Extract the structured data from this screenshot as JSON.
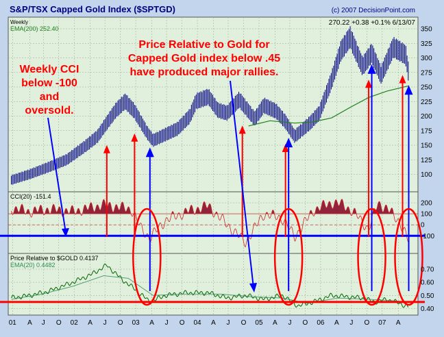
{
  "header": {
    "title": "S&P/TSX Capped Gold Index ($SPTGD)",
    "copyright": "(c) 2007 DecisionPoint.com",
    "period": "Weekly",
    "ema_label": "EMA(200) 252.40",
    "last_quote": "270.22  +0.38  +0.1%  6/13/07"
  },
  "annotations": {
    "cci_note": [
      "Weekly CCI",
      "below -100",
      "and",
      "oversold."
    ],
    "ratio_note": [
      "Price Relative to Gold for",
      "Capped Gold index below .45",
      "have produced major rallies."
    ]
  },
  "panels": {
    "cci_label": "CCI(20) -151.4",
    "ratio_label": "Price Relative to $GOLD  0.4137",
    "ratio_ema_label": "EMA(20) 0.4482"
  },
  "colors": {
    "background": "#e0f0dc",
    "frame_bg": "#c2d5ec",
    "price_bars": "#000080",
    "ema_line": "#208020",
    "cci_fill": "#800020",
    "cci_line": "#cc2222",
    "ratio_line": "#006400",
    "ratio_ema": "#2e8b57",
    "red_marker": "#ff0000",
    "blue_marker": "#0000ff",
    "annotation_red": "#ff0000",
    "title_blue": "#000080"
  },
  "chart_data": [
    {
      "type": "line",
      "name": "price",
      "ylim": [
        70,
        370
      ],
      "yticks": [
        100,
        125,
        150,
        175,
        200,
        225,
        250,
        275,
        300,
        325,
        350
      ],
      "x": [
        2001.0,
        2001.3,
        2001.6,
        2001.9,
        2002.2,
        2002.4,
        2002.55,
        2002.7,
        2002.85,
        2003.0,
        2003.2,
        2003.3,
        2003.5,
        2003.7,
        2003.9,
        2004.0,
        2004.2,
        2004.35,
        2004.5,
        2004.7,
        2004.95,
        2005.1,
        2005.3,
        2005.45,
        2005.6,
        2005.85,
        2006.0,
        2006.2,
        2006.35,
        2006.5,
        2006.7,
        2006.85,
        2007.0,
        2007.2,
        2007.4,
        2007.45
      ],
      "values": [
        90,
        100,
        112,
        125,
        148,
        165,
        188,
        210,
        225,
        208,
        172,
        158,
        168,
        178,
        200,
        225,
        233,
        210,
        205,
        228,
        195,
        218,
        208,
        190,
        165,
        188,
        205,
        262,
        312,
        335,
        285,
        308,
        270,
        318,
        305,
        272
      ],
      "ema200": {
        "x": [
          2004.85,
          2005.2,
          2005.6,
          2005.9,
          2006.2,
          2006.5,
          2006.8,
          2007.1,
          2007.45
        ],
        "values": [
          183,
          192,
          188,
          190,
          197,
          215,
          232,
          243,
          252
        ]
      }
    },
    {
      "type": "area",
      "name": "CCI(20)",
      "ylim": [
        -260,
        300
      ],
      "yticks": [
        200,
        100,
        0,
        -100
      ],
      "x": [
        2001.0,
        2001.3,
        2001.6,
        2002.0,
        2002.5,
        2002.95,
        2003.1,
        2003.25,
        2003.5,
        2003.85,
        2004.2,
        2004.45,
        2004.8,
        2005.1,
        2005.4,
        2005.6,
        2005.9,
        2006.2,
        2006.4,
        2006.6,
        2006.8,
        2006.95,
        2007.15,
        2007.3,
        2007.45
      ],
      "values": [
        150,
        120,
        140,
        120,
        180,
        140,
        -30,
        -120,
        40,
        120,
        170,
        30,
        -160,
        100,
        60,
        -110,
        130,
        200,
        180,
        90,
        -40,
        200,
        120,
        30,
        -151
      ],
      "overbought": 100,
      "oversold": -100
    },
    {
      "type": "line",
      "name": "Price Relative to $GOLD",
      "ylim": [
        0.35,
        0.82
      ],
      "yticks": [
        0.7,
        0.6,
        0.5,
        0.4
      ],
      "threshold": 0.45,
      "x": [
        2001.0,
        2001.3,
        2001.6,
        2002.0,
        2002.3,
        2002.55,
        2002.8,
        2003.0,
        2003.25,
        2003.5,
        2003.85,
        2004.2,
        2004.5,
        2004.8,
        2005.1,
        2005.4,
        2005.65,
        2005.9,
        2006.2,
        2006.45,
        2006.7,
        2006.9,
        2007.1,
        2007.3,
        2007.45
      ],
      "values": [
        0.48,
        0.5,
        0.53,
        0.6,
        0.66,
        0.73,
        0.62,
        0.55,
        0.45,
        0.5,
        0.52,
        0.52,
        0.48,
        0.5,
        0.47,
        0.5,
        0.42,
        0.45,
        0.5,
        0.49,
        0.48,
        0.45,
        0.47,
        0.44,
        0.41
      ],
      "ema20": {
        "x": [
          2001.0,
          2001.5,
          2002.0,
          2002.5,
          2002.9,
          2003.3,
          2003.8,
          2004.4,
          2004.9,
          2005.4,
          2005.8,
          2006.3,
          2006.8,
          2007.2,
          2007.45
        ],
        "values": [
          0.47,
          0.51,
          0.57,
          0.65,
          0.63,
          0.5,
          0.51,
          0.51,
          0.49,
          0.48,
          0.44,
          0.48,
          0.47,
          0.46,
          0.448
        ]
      }
    }
  ],
  "x_axis": {
    "ticks": [
      {
        "label": "01",
        "x": 2001.02
      },
      {
        "label": "A",
        "x": 2001.3
      },
      {
        "label": "J",
        "x": 2001.52
      },
      {
        "label": "O",
        "x": 2001.77
      },
      {
        "label": "02",
        "x": 2002.02
      },
      {
        "label": "A",
        "x": 2002.28
      },
      {
        "label": "J",
        "x": 2002.52
      },
      {
        "label": "O",
        "x": 2002.77
      },
      {
        "label": "03",
        "x": 2003.02
      },
      {
        "label": "A",
        "x": 2003.28
      },
      {
        "label": "J",
        "x": 2003.52
      },
      {
        "label": "O",
        "x": 2003.77
      },
      {
        "label": "04",
        "x": 2004.02
      },
      {
        "label": "A",
        "x": 2004.28
      },
      {
        "label": "J",
        "x": 2004.52
      },
      {
        "label": "O",
        "x": 2004.77
      },
      {
        "label": "05",
        "x": 2005.02
      },
      {
        "label": "A",
        "x": 2005.28
      },
      {
        "label": "J",
        "x": 2005.52
      },
      {
        "label": "O",
        "x": 2005.77
      },
      {
        "label": "06",
        "x": 2006.02
      },
      {
        "label": "A",
        "x": 2006.28
      },
      {
        "label": "J",
        "x": 2006.52
      },
      {
        "label": "O",
        "x": 2006.77
      },
      {
        "label": "07",
        "x": 2007.02
      },
      {
        "label": "A",
        "x": 2007.28
      }
    ]
  },
  "signals": {
    "red_arrows_x": [
      2002.55,
      2003.0,
      2004.75,
      2005.45,
      2006.8,
      2007.35
    ],
    "blue_arrows_x": [
      2003.25,
      2005.5,
      2006.85,
      2007.45
    ],
    "ellipse_x": [
      2003.2,
      2005.5,
      2006.85,
      2007.45
    ]
  }
}
